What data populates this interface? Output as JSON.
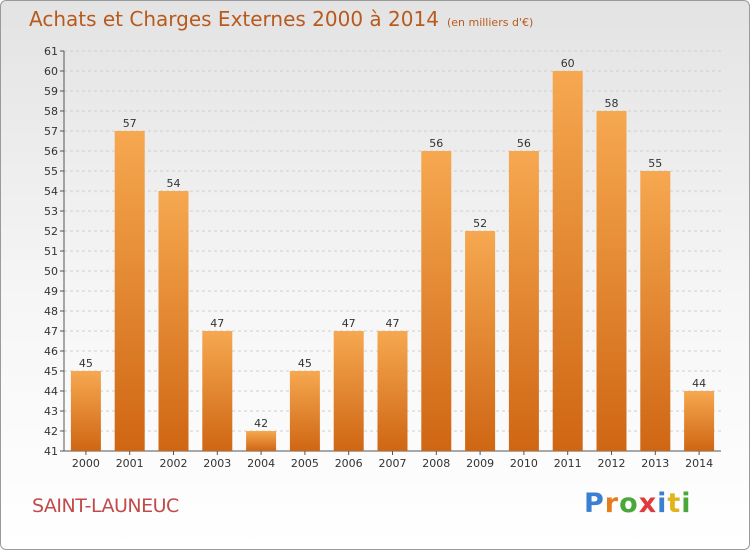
{
  "header": {
    "title": "Achats et Charges Externes 2000 à 2014",
    "unit": "(en milliers d'€)"
  },
  "footer": {
    "commune": "SAINT-LAUNEUC",
    "brand_letters": [
      {
        "ch": "P",
        "color": "#3a7fd0"
      },
      {
        "ch": "r",
        "color": "#e87b1c"
      },
      {
        "ch": "o",
        "color": "#4aa83a"
      },
      {
        "ch": "x",
        "color": "#e03a3a"
      },
      {
        "ch": "i",
        "color": "#3a7fd0"
      },
      {
        "ch": "t",
        "color": "#e0b41c"
      },
      {
        "ch": "i",
        "color": "#4aa83a"
      }
    ]
  },
  "colors": {
    "bar_light": "#f6a850",
    "bar_dark": "#cf6614",
    "title": "#b85a1e",
    "commune": "#c24a4a"
  },
  "chart_data": {
    "type": "bar",
    "categories": [
      "2000",
      "2001",
      "2002",
      "2003",
      "2004",
      "2005",
      "2006",
      "2007",
      "2008",
      "2009",
      "2010",
      "2011",
      "2012",
      "2013",
      "2014"
    ],
    "values": [
      45,
      57,
      54,
      47,
      42,
      45,
      47,
      47,
      56,
      52,
      56,
      60,
      58,
      55,
      44
    ],
    "title": "Achats et Charges Externes 2000 à 2014",
    "ylim": [
      41,
      61
    ],
    "yticks": [
      41,
      42,
      43,
      44,
      45,
      46,
      47,
      48,
      49,
      50,
      51,
      52,
      53,
      54,
      55,
      56,
      57,
      58,
      59,
      60,
      61
    ],
    "grid": true,
    "legend": "none"
  }
}
